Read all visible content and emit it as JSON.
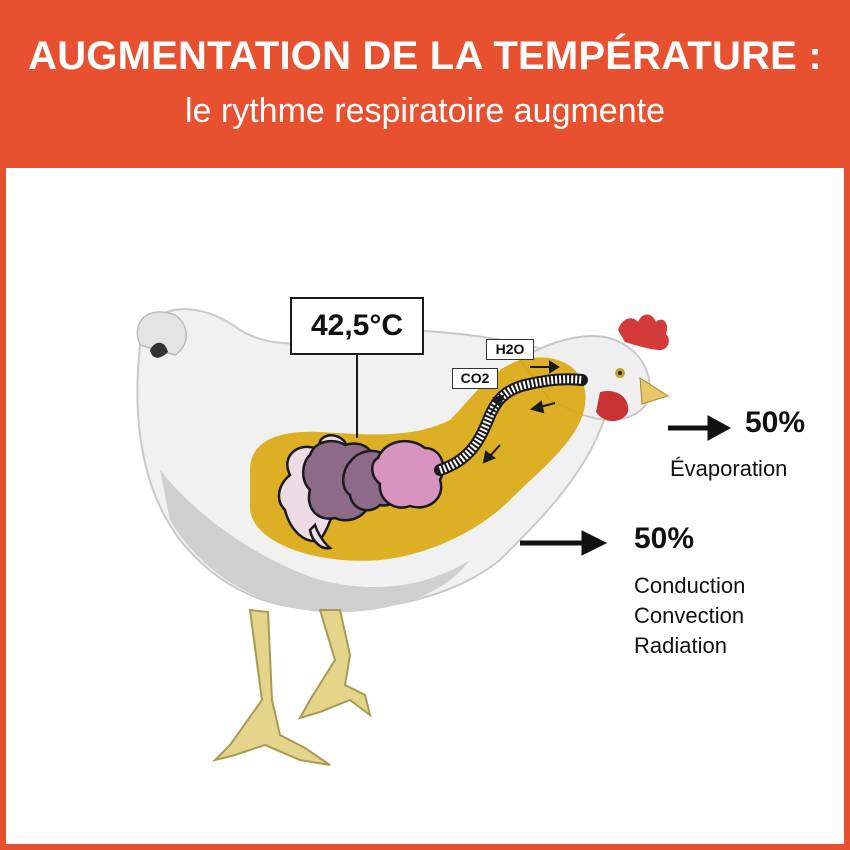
{
  "header": {
    "title": "AUGMENTATION DE LA TEMPÉRATURE :",
    "subtitle": "le rythme respiratoire augmente"
  },
  "diagram": {
    "body_temperature": "42,5°C",
    "gas_labels": {
      "water": "H2O",
      "carbon_dioxide": "CO2"
    },
    "outputs": [
      {
        "percent": "50%",
        "mechanisms": [
          "Évaporation"
        ]
      },
      {
        "percent": "50%",
        "mechanisms": [
          "Conduction",
          "Convection",
          "Radiation"
        ]
      }
    ]
  },
  "colors": {
    "header_background": "#e75130",
    "body_highlight": "#d9a300",
    "organ_dark": "#8d6a87",
    "organ_light": "#d893c0"
  }
}
